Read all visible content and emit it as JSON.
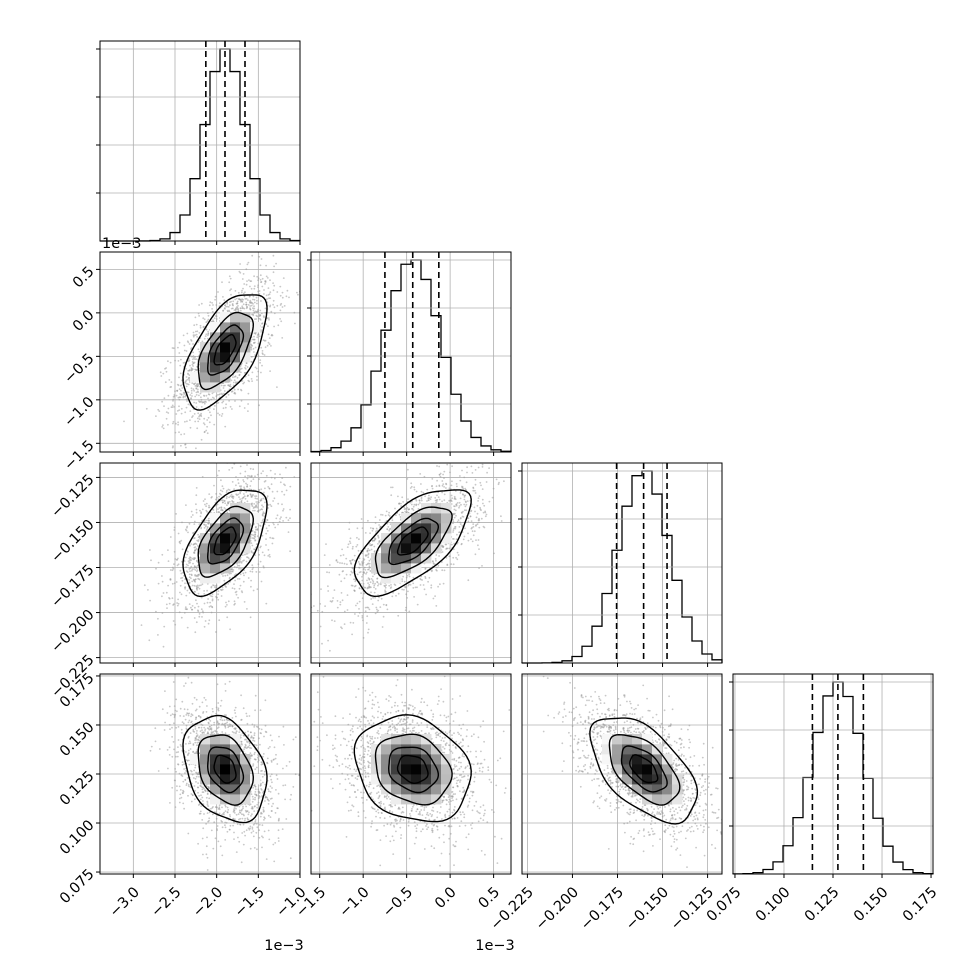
{
  "figure": {
    "type": "corner-plot",
    "colors": {
      "axis": "#000000",
      "grid": "#b0b0b0",
      "density_dark": "#000000",
      "scatter": "#9a9a9a",
      "background": "#ffffff"
    }
  },
  "chart_data": {
    "type": "corner",
    "n_params": 4,
    "grid": true,
    "params": [
      {
        "label": "",
        "median": -0.0019,
        "q16": -0.00213,
        "q84": -0.00166,
        "sigma": 0.00024,
        "range": [
          -0.0034,
          -0.001
        ],
        "ticks": [
          -0.003,
          -0.0025,
          -0.002,
          -0.0015,
          -0.001
        ],
        "tick_labels": [
          "−3.0",
          "−2.5",
          "−2.0",
          "−1.5",
          "−1.0"
        ],
        "offset_text": "1e−3"
      },
      {
        "label": "",
        "median": -0.00043,
        "q16": -0.00075,
        "q84": -0.00013,
        "sigma": 0.00032,
        "range": [
          -0.0016,
          0.0007
        ],
        "ticks": [
          -0.0015,
          -0.001,
          -0.0005,
          0.0,
          0.0005
        ],
        "tick_labels": [
          "−1.5",
          "−1.0",
          "−0.5",
          "0.0",
          "0.5"
        ],
        "offset_text": "1e−3"
      },
      {
        "label": "",
        "median": -0.1605,
        "q16": -0.1755,
        "q84": -0.1475,
        "sigma": 0.0142,
        "range": [
          -0.228,
          -0.117
        ],
        "ticks": [
          -0.225,
          -0.2,
          -0.175,
          -0.15,
          -0.125
        ],
        "tick_labels": [
          "−0.225",
          "−0.200",
          "−0.175",
          "−0.150",
          "−0.125"
        ],
        "offset_text": ""
      },
      {
        "label": "",
        "median": 0.1275,
        "q16": 0.1145,
        "q84": 0.1405,
        "sigma": 0.013,
        "range": [
          0.074,
          0.176
        ],
        "ticks": [
          0.075,
          0.1,
          0.125,
          0.15,
          0.175
        ],
        "tick_labels": [
          "0.075",
          "0.100",
          "0.125",
          "0.150",
          "0.175"
        ],
        "offset_text": ""
      }
    ],
    "correlations": [
      [
        1.0,
        0.6,
        0.55,
        -0.3
      ],
      [
        0.6,
        1.0,
        0.65,
        -0.2
      ],
      [
        0.55,
        0.65,
        1.0,
        -0.55
      ],
      [
        -0.3,
        -0.2,
        -0.55,
        1.0
      ]
    ],
    "histogram": {
      "bins": 20,
      "style": "step"
    },
    "contour_levels_sigma": [
      0.5,
      1.0,
      1.5,
      2.0
    ],
    "quantile_lines": [
      "q16",
      "median",
      "q84"
    ]
  }
}
